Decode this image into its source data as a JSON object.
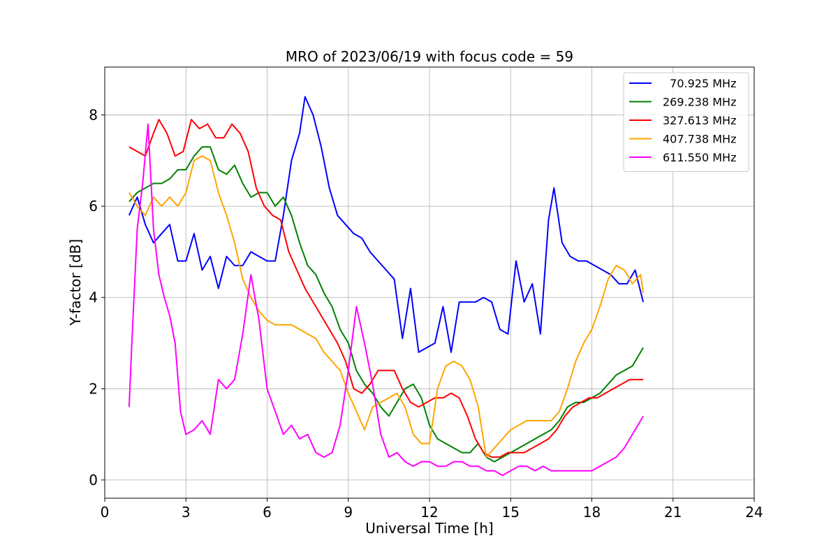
{
  "chart_data": {
    "type": "line",
    "title": "MRO of 2023/06/19 with focus code = 59",
    "xlabel": "Universal Time [h]",
    "ylabel": "Y-factor [dB]",
    "xlim": [
      0,
      24
    ],
    "ylim": [
      -0.4,
      9.05
    ],
    "xticks": [
      0,
      3,
      6,
      9,
      12,
      15,
      18,
      21,
      24
    ],
    "yticks": [
      0,
      2,
      4,
      6,
      8
    ],
    "grid": true,
    "legend_position": "top-right",
    "series": [
      {
        "name": "  70.925 MHz",
        "color": "#0000ff",
        "x": [
          0.9,
          1.2,
          1.5,
          1.8,
          2.1,
          2.4,
          2.7,
          3.0,
          3.3,
          3.6,
          3.9,
          4.2,
          4.5,
          4.8,
          5.1,
          5.4,
          5.7,
          6.0,
          6.3,
          6.6,
          6.9,
          7.2,
          7.4,
          7.7,
          8.0,
          8.3,
          8.6,
          8.9,
          9.2,
          9.5,
          9.8,
          10.1,
          10.4,
          10.7,
          11.0,
          11.3,
          11.6,
          11.9,
          12.2,
          12.5,
          12.8,
          13.1,
          13.4,
          13.7,
          14.0,
          14.3,
          14.6,
          14.9,
          15.2,
          15.5,
          15.8,
          16.1,
          16.4,
          16.6,
          16.9,
          17.2,
          17.5,
          17.8,
          18.1,
          18.4,
          18.7,
          19.0,
          19.3,
          19.6,
          19.9
        ],
        "y": [
          5.8,
          6.2,
          5.6,
          5.2,
          5.4,
          5.6,
          4.8,
          4.8,
          5.4,
          4.6,
          4.9,
          4.2,
          4.9,
          4.7,
          4.7,
          5.0,
          4.9,
          4.8,
          4.8,
          5.8,
          7.0,
          7.6,
          8.4,
          8.0,
          7.3,
          6.4,
          5.8,
          5.6,
          5.4,
          5.3,
          5.0,
          4.8,
          4.6,
          4.4,
          3.1,
          4.2,
          2.8,
          2.9,
          3.0,
          3.8,
          2.8,
          3.9,
          3.9,
          3.9,
          4.0,
          3.9,
          3.3,
          3.2,
          4.8,
          3.9,
          4.3,
          3.2,
          5.7,
          6.4,
          5.2,
          4.9,
          4.8,
          4.8,
          4.7,
          4.6,
          4.5,
          4.3,
          4.3,
          4.6,
          3.9
        ]
      },
      {
        "name": "269.238 MHz",
        "color": "#008000",
        "x": [
          0.9,
          1.2,
          1.5,
          1.8,
          2.1,
          2.4,
          2.7,
          3.0,
          3.3,
          3.6,
          3.9,
          4.2,
          4.5,
          4.8,
          5.1,
          5.4,
          5.7,
          6.0,
          6.3,
          6.6,
          6.9,
          7.2,
          7.5,
          7.8,
          8.1,
          8.4,
          8.7,
          9.0,
          9.3,
          9.6,
          9.9,
          10.2,
          10.5,
          10.8,
          11.1,
          11.4,
          11.7,
          12.0,
          12.3,
          12.6,
          12.9,
          13.2,
          13.5,
          13.8,
          14.1,
          14.4,
          14.7,
          15.0,
          15.3,
          15.6,
          15.9,
          16.2,
          16.5,
          16.8,
          17.1,
          17.4,
          17.7,
          18.0,
          18.3,
          18.6,
          18.9,
          19.2,
          19.5,
          19.9
        ],
        "y": [
          6.1,
          6.3,
          6.4,
          6.5,
          6.5,
          6.6,
          6.8,
          6.8,
          7.1,
          7.3,
          7.3,
          6.8,
          6.7,
          6.9,
          6.5,
          6.2,
          6.3,
          6.3,
          6.0,
          6.2,
          5.8,
          5.2,
          4.7,
          4.5,
          4.1,
          3.8,
          3.3,
          3.0,
          2.4,
          2.1,
          1.9,
          1.6,
          1.4,
          1.7,
          2.0,
          2.1,
          1.8,
          1.2,
          0.9,
          0.8,
          0.7,
          0.6,
          0.6,
          0.8,
          0.5,
          0.4,
          0.5,
          0.6,
          0.7,
          0.8,
          0.9,
          1.0,
          1.1,
          1.3,
          1.6,
          1.7,
          1.7,
          1.8,
          1.9,
          2.1,
          2.3,
          2.4,
          2.5,
          2.9
        ]
      },
      {
        "name": "327.613 MHz",
        "color": "#ff0000",
        "x": [
          0.9,
          1.2,
          1.5,
          1.8,
          2.0,
          2.3,
          2.6,
          2.9,
          3.2,
          3.5,
          3.8,
          4.1,
          4.4,
          4.7,
          5.0,
          5.3,
          5.6,
          5.9,
          6.2,
          6.5,
          6.8,
          7.1,
          7.4,
          7.7,
          8.0,
          8.3,
          8.6,
          8.9,
          9.2,
          9.5,
          9.8,
          10.1,
          10.4,
          10.7,
          11.0,
          11.3,
          11.6,
          11.9,
          12.2,
          12.5,
          12.8,
          13.1,
          13.4,
          13.7,
          14.0,
          14.3,
          14.6,
          14.9,
          15.2,
          15.5,
          15.8,
          16.1,
          16.4,
          16.7,
          17.0,
          17.3,
          17.6,
          17.9,
          18.2,
          18.5,
          18.8,
          19.1,
          19.4,
          19.7,
          19.9
        ],
        "y": [
          7.3,
          7.2,
          7.1,
          7.6,
          7.9,
          7.6,
          7.1,
          7.2,
          7.9,
          7.7,
          7.8,
          7.5,
          7.5,
          7.8,
          7.6,
          7.2,
          6.4,
          6.0,
          5.8,
          5.7,
          5.0,
          4.6,
          4.2,
          3.9,
          3.6,
          3.3,
          3.0,
          2.6,
          2.0,
          1.9,
          2.1,
          2.4,
          2.4,
          2.4,
          2.0,
          1.7,
          1.6,
          1.7,
          1.8,
          1.8,
          1.9,
          1.8,
          1.4,
          0.9,
          0.6,
          0.5,
          0.5,
          0.6,
          0.6,
          0.6,
          0.7,
          0.8,
          0.9,
          1.1,
          1.4,
          1.6,
          1.7,
          1.8,
          1.8,
          1.9,
          2.0,
          2.1,
          2.2,
          2.2,
          2.2
        ]
      },
      {
        "name": "407.738 MHz",
        "color": "#ffa500",
        "x": [
          0.9,
          1.2,
          1.5,
          1.8,
          2.1,
          2.4,
          2.7,
          3.0,
          3.3,
          3.6,
          3.9,
          4.2,
          4.5,
          4.8,
          5.1,
          5.4,
          5.7,
          6.0,
          6.3,
          6.6,
          6.9,
          7.2,
          7.5,
          7.8,
          8.1,
          8.4,
          8.7,
          9.0,
          9.3,
          9.6,
          9.9,
          10.2,
          10.5,
          10.8,
          11.1,
          11.4,
          11.7,
          12.0,
          12.3,
          12.6,
          12.9,
          13.2,
          13.5,
          13.8,
          14.1,
          14.4,
          14.7,
          15.0,
          15.3,
          15.6,
          15.9,
          16.2,
          16.5,
          16.8,
          17.1,
          17.4,
          17.7,
          18.0,
          18.3,
          18.6,
          18.9,
          19.2,
          19.5,
          19.8,
          19.9
        ],
        "y": [
          6.3,
          6.0,
          5.8,
          6.2,
          6.0,
          6.2,
          6.0,
          6.3,
          7.0,
          7.1,
          7.0,
          6.3,
          5.8,
          5.2,
          4.4,
          4.0,
          3.7,
          3.5,
          3.4,
          3.4,
          3.4,
          3.3,
          3.2,
          3.1,
          2.8,
          2.6,
          2.4,
          1.9,
          1.5,
          1.1,
          1.6,
          1.7,
          1.8,
          1.9,
          1.6,
          1.0,
          0.8,
          0.8,
          2.0,
          2.5,
          2.6,
          2.5,
          2.2,
          1.6,
          0.5,
          0.7,
          0.9,
          1.1,
          1.2,
          1.3,
          1.3,
          1.3,
          1.3,
          1.5,
          2.0,
          2.6,
          3.0,
          3.3,
          3.8,
          4.4,
          4.7,
          4.6,
          4.3,
          4.5,
          4.1
        ]
      },
      {
        "name": "611.550 MHz",
        "color": "#ff00ff",
        "x": [
          0.9,
          1.0,
          1.2,
          1.4,
          1.6,
          1.8,
          2.0,
          2.2,
          2.4,
          2.6,
          2.8,
          3.0,
          3.3,
          3.6,
          3.9,
          4.2,
          4.5,
          4.8,
          5.1,
          5.4,
          5.7,
          6.0,
          6.3,
          6.6,
          6.9,
          7.2,
          7.5,
          7.8,
          8.1,
          8.4,
          8.7,
          9.0,
          9.3,
          9.6,
          9.9,
          10.2,
          10.5,
          10.8,
          11.1,
          11.4,
          11.7,
          12.0,
          12.3,
          12.6,
          12.9,
          13.2,
          13.5,
          13.8,
          14.1,
          14.4,
          14.7,
          15.0,
          15.3,
          15.6,
          15.9,
          16.2,
          16.5,
          16.8,
          17.1,
          17.4,
          17.7,
          18.0,
          18.3,
          18.6,
          18.9,
          19.2,
          19.5,
          19.8,
          19.9
        ],
        "y": [
          1.6,
          3.0,
          5.5,
          6.5,
          7.8,
          5.5,
          4.5,
          4.0,
          3.6,
          3.0,
          1.5,
          1.0,
          1.1,
          1.3,
          1.0,
          2.2,
          2.0,
          2.2,
          3.2,
          4.5,
          3.5,
          2.0,
          1.5,
          1.0,
          1.2,
          0.9,
          1.0,
          0.6,
          0.5,
          0.6,
          1.2,
          2.4,
          3.8,
          3.0,
          2.1,
          1.0,
          0.5,
          0.6,
          0.4,
          0.3,
          0.4,
          0.4,
          0.3,
          0.3,
          0.4,
          0.4,
          0.3,
          0.3,
          0.2,
          0.2,
          0.1,
          0.2,
          0.3,
          0.3,
          0.2,
          0.3,
          0.2,
          0.2,
          0.2,
          0.2,
          0.2,
          0.2,
          0.3,
          0.4,
          0.5,
          0.7,
          1.0,
          1.3,
          1.4
        ]
      }
    ]
  }
}
